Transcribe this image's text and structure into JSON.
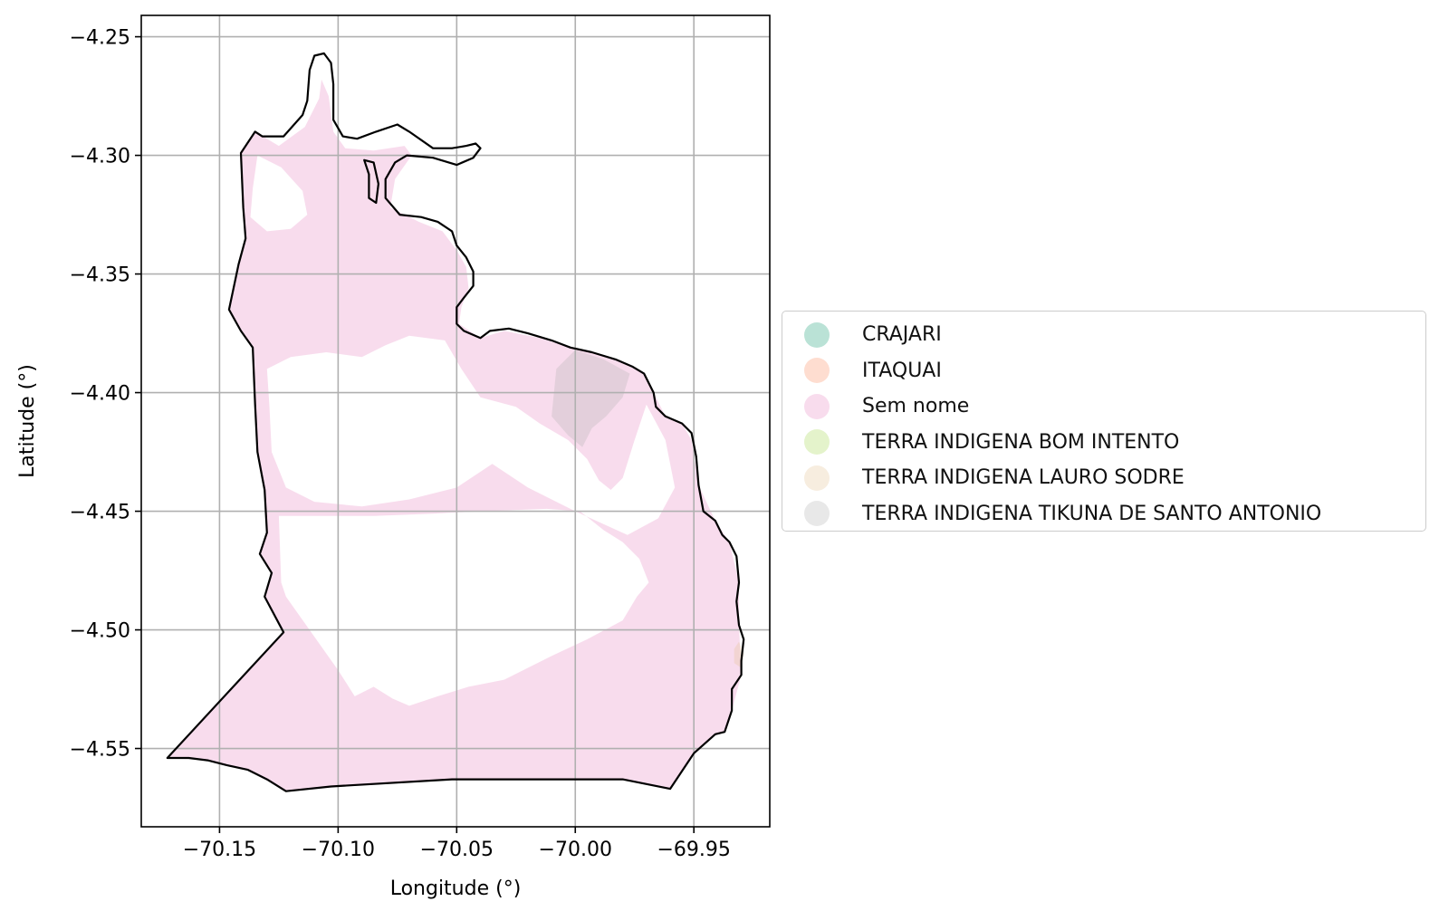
{
  "chart_data": {
    "type": "map",
    "title": "",
    "xlabel": "Longitude (°)",
    "ylabel": "Latitude (°)",
    "xlim": [
      -70.183,
      -69.918
    ],
    "ylim": [
      -4.583,
      -4.241
    ],
    "xticks": [
      -70.15,
      -70.1,
      -70.05,
      -70.0,
      -69.95
    ],
    "xtick_labels": [
      "−70.15",
      "−70.10",
      "−70.05",
      "−70.00",
      "−69.95"
    ],
    "yticks": [
      -4.25,
      -4.3,
      -4.35,
      -4.4,
      -4.45,
      -4.5,
      -4.55
    ],
    "ytick_labels": [
      "−4.25",
      "−4.30",
      "−4.35",
      "−4.40",
      "−4.45",
      "−4.50",
      "−4.55"
    ],
    "grid": true,
    "legend_position": "right-center",
    "legend": [
      {
        "label": "CRAJARI",
        "color": "#1b9e77"
      },
      {
        "label": "ITAQUAI",
        "color": "#fc8d62"
      },
      {
        "label": "Sem nome",
        "color": "#e78ac3"
      },
      {
        "label": "TERRA INDIGENA BOM INTENTO",
        "color": "#a6d854"
      },
      {
        "label": "TERRA INDIGENA LAURO SODRE",
        "color": "#e5c494"
      },
      {
        "label": "TERRA INDIGENA TIKUNA DE SANTO ANTONIO",
        "color": "#b3b3b3"
      }
    ],
    "fill_alpha": 0.3,
    "boundary": [
      [
        -70.123,
        -4.501
      ],
      [
        -70.131,
        -4.486
      ],
      [
        -70.128,
        -4.476
      ],
      [
        -70.133,
        -4.468
      ],
      [
        -70.13,
        -4.459
      ],
      [
        -70.131,
        -4.441
      ],
      [
        -70.134,
        -4.425
      ],
      [
        -70.135,
        -4.405
      ],
      [
        -70.136,
        -4.381
      ],
      [
        -70.141,
        -4.374
      ],
      [
        -70.146,
        -4.365
      ],
      [
        -70.142,
        -4.346
      ],
      [
        -70.139,
        -4.335
      ],
      [
        -70.14,
        -4.322
      ],
      [
        -70.141,
        -4.299
      ],
      [
        -70.135,
        -4.29
      ],
      [
        -70.132,
        -4.292
      ],
      [
        -70.123,
        -4.292
      ],
      [
        -70.115,
        -4.283
      ],
      [
        -70.113,
        -4.277
      ],
      [
        -70.112,
        -4.264
      ],
      [
        -70.11,
        -4.258
      ],
      [
        -70.106,
        -4.257
      ],
      [
        -70.103,
        -4.261
      ],
      [
        -70.102,
        -4.27
      ],
      [
        -70.102,
        -4.285
      ],
      [
        -70.098,
        -4.292
      ],
      [
        -70.092,
        -4.293
      ],
      [
        -70.084,
        -4.29
      ],
      [
        -70.075,
        -4.287
      ],
      [
        -70.07,
        -4.29
      ],
      [
        -70.06,
        -4.297
      ],
      [
        -70.052,
        -4.297
      ],
      [
        -70.046,
        -4.296
      ],
      [
        -70.042,
        -4.295
      ],
      [
        -70.04,
        -4.297
      ],
      [
        -70.043,
        -4.301
      ],
      [
        -70.05,
        -4.304
      ],
      [
        -70.06,
        -4.301
      ],
      [
        -70.071,
        -4.3
      ],
      [
        -70.076,
        -4.303
      ],
      [
        -70.08,
        -4.31
      ],
      [
        -70.08,
        -4.318
      ],
      [
        -70.074,
        -4.325
      ],
      [
        -70.065,
        -4.326
      ],
      [
        -70.058,
        -4.328
      ],
      [
        -70.052,
        -4.332
      ],
      [
        -70.05,
        -4.338
      ],
      [
        -70.046,
        -4.343
      ],
      [
        -70.043,
        -4.349
      ],
      [
        -70.043,
        -4.355
      ],
      [
        -70.047,
        -4.36
      ],
      [
        -70.05,
        -4.364
      ],
      [
        -70.05,
        -4.371
      ],
      [
        -70.047,
        -4.374
      ],
      [
        -70.04,
        -4.377
      ],
      [
        -70.036,
        -4.374
      ],
      [
        -70.028,
        -4.373
      ],
      [
        -70.02,
        -4.375
      ],
      [
        -70.01,
        -4.378
      ],
      [
        -70.002,
        -4.381
      ],
      [
        -69.993,
        -4.383
      ],
      [
        -69.983,
        -4.386
      ],
      [
        -69.976,
        -4.389
      ],
      [
        -69.971,
        -4.392
      ],
      [
        -69.967,
        -4.4
      ],
      [
        -69.966,
        -4.406
      ],
      [
        -69.962,
        -4.41
      ],
      [
        -69.955,
        -4.413
      ],
      [
        -69.951,
        -4.417
      ],
      [
        -69.949,
        -4.427
      ],
      [
        -69.948,
        -4.439
      ],
      [
        -69.946,
        -4.45
      ],
      [
        -69.941,
        -4.454
      ],
      [
        -69.938,
        -4.46
      ],
      [
        -69.935,
        -4.463
      ],
      [
        -69.932,
        -4.469
      ],
      [
        -69.931,
        -4.48
      ],
      [
        -69.932,
        -4.488
      ],
      [
        -69.931,
        -4.498
      ],
      [
        -69.929,
        -4.504
      ],
      [
        -69.93,
        -4.513
      ],
      [
        -69.93,
        -4.519
      ],
      [
        -69.934,
        -4.525
      ],
      [
        -69.934,
        -4.534
      ],
      [
        -69.937,
        -4.543
      ],
      [
        -69.941,
        -4.544
      ],
      [
        -69.95,
        -4.552
      ],
      [
        -69.96,
        -4.567
      ],
      [
        -69.98,
        -4.563
      ],
      [
        -70.052,
        -4.563
      ],
      [
        -70.103,
        -4.566
      ],
      [
        -70.122,
        -4.568
      ],
      [
        -70.13,
        -4.563
      ],
      [
        -70.138,
        -4.559
      ],
      [
        -70.147,
        -4.557
      ],
      [
        -70.155,
        -4.555
      ],
      [
        -70.163,
        -4.554
      ],
      [
        -70.172,
        -4.554
      ]
    ],
    "inner_boundary": [
      [
        -70.089,
        -4.302
      ],
      [
        -70.087,
        -4.308
      ],
      [
        -70.087,
        -4.318
      ],
      [
        -70.084,
        -4.32
      ],
      [
        -70.083,
        -4.312
      ],
      [
        -70.085,
        -4.303
      ]
    ],
    "regions": [
      {
        "label": "Sem nome",
        "outer": [
          [
            -70.123,
            -4.501
          ],
          [
            -70.131,
            -4.486
          ],
          [
            -70.128,
            -4.476
          ],
          [
            -70.133,
            -4.468
          ],
          [
            -70.13,
            -4.459
          ],
          [
            -70.131,
            -4.441
          ],
          [
            -70.134,
            -4.425
          ],
          [
            -70.135,
            -4.405
          ],
          [
            -70.136,
            -4.381
          ],
          [
            -70.141,
            -4.374
          ],
          [
            -70.146,
            -4.365
          ],
          [
            -70.142,
            -4.346
          ],
          [
            -70.139,
            -4.335
          ],
          [
            -70.14,
            -4.322
          ],
          [
            -70.141,
            -4.299
          ],
          [
            -70.135,
            -4.29
          ],
          [
            -70.125,
            -4.296
          ],
          [
            -70.114,
            -4.288
          ],
          [
            -70.108,
            -4.276
          ],
          [
            -70.107,
            -4.268
          ],
          [
            -70.104,
            -4.275
          ],
          [
            -70.102,
            -4.29
          ],
          [
            -70.097,
            -4.297
          ],
          [
            -70.085,
            -4.298
          ],
          [
            -70.072,
            -4.296
          ],
          [
            -70.069,
            -4.3
          ],
          [
            -70.076,
            -4.31
          ],
          [
            -70.078,
            -4.322
          ],
          [
            -70.066,
            -4.328
          ],
          [
            -70.056,
            -4.332
          ],
          [
            -70.05,
            -4.34
          ],
          [
            -70.046,
            -4.347
          ],
          [
            -70.045,
            -4.356
          ],
          [
            -70.048,
            -4.364
          ],
          [
            -70.049,
            -4.371
          ],
          [
            -70.04,
            -4.377
          ],
          [
            -70.03,
            -4.374
          ],
          [
            -70.015,
            -4.377
          ],
          [
            -70.002,
            -4.381
          ],
          [
            -69.993,
            -4.383
          ],
          [
            -69.983,
            -4.386
          ],
          [
            -69.971,
            -4.392
          ],
          [
            -69.967,
            -4.4
          ],
          [
            -69.962,
            -4.41
          ],
          [
            -69.955,
            -4.413
          ],
          [
            -69.951,
            -4.42
          ],
          [
            -69.948,
            -4.439
          ],
          [
            -69.941,
            -4.454
          ],
          [
            -69.935,
            -4.463
          ],
          [
            -69.931,
            -4.48
          ],
          [
            -69.931,
            -4.498
          ],
          [
            -69.93,
            -4.519
          ],
          [
            -69.934,
            -4.534
          ],
          [
            -69.937,
            -4.543
          ],
          [
            -69.941,
            -4.544
          ],
          [
            -69.95,
            -4.552
          ],
          [
            -69.96,
            -4.567
          ],
          [
            -69.98,
            -4.563
          ],
          [
            -70.052,
            -4.563
          ],
          [
            -70.103,
            -4.566
          ],
          [
            -70.122,
            -4.568
          ],
          [
            -70.138,
            -4.559
          ],
          [
            -70.155,
            -4.555
          ],
          [
            -70.172,
            -4.554
          ]
        ],
        "holes": [
          [
            [
              -70.119,
              -4.452
            ],
            [
              -70.125,
              -4.452
            ],
            [
              -70.124,
              -4.48
            ],
            [
              -70.122,
              -4.486
            ],
            [
              -70.1,
              -4.517
            ],
            [
              -70.093,
              -4.528
            ],
            [
              -70.085,
              -4.524
            ],
            [
              -70.077,
              -4.529
            ],
            [
              -70.07,
              -4.532
            ],
            [
              -70.058,
              -4.528
            ],
            [
              -70.045,
              -4.524
            ],
            [
              -70.03,
              -4.521
            ],
            [
              -70.01,
              -4.511
            ],
            [
              -69.995,
              -4.504
            ],
            [
              -69.98,
              -4.496
            ],
            [
              -69.974,
              -4.486
            ],
            [
              -69.969,
              -4.48
            ],
            [
              -69.973,
              -4.47
            ],
            [
              -69.98,
              -4.463
            ],
            [
              -69.988,
              -4.458
            ],
            [
              -69.998,
              -4.45
            ],
            [
              -70.012,
              -4.449
            ],
            [
              -70.04,
              -4.45
            ],
            [
              -70.06,
              -4.451
            ],
            [
              -70.085,
              -4.452
            ],
            [
              -70.1,
              -4.452
            ]
          ],
          [
            [
              -70.13,
              -4.39
            ],
            [
              -70.12,
              -4.385
            ],
            [
              -70.105,
              -4.383
            ],
            [
              -70.09,
              -4.385
            ],
            [
              -70.08,
              -4.38
            ],
            [
              -70.07,
              -4.376
            ],
            [
              -70.055,
              -4.378
            ],
            [
              -70.048,
              -4.39
            ],
            [
              -70.04,
              -4.402
            ],
            [
              -70.025,
              -4.406
            ],
            [
              -70.015,
              -4.413
            ],
            [
              -70.003,
              -4.42
            ],
            [
              -69.995,
              -4.428
            ],
            [
              -69.99,
              -4.437
            ],
            [
              -69.985,
              -4.441
            ],
            [
              -69.98,
              -4.436
            ],
            [
              -69.975,
              -4.42
            ],
            [
              -69.97,
              -4.405
            ],
            [
              -69.962,
              -4.42
            ],
            [
              -69.958,
              -4.44
            ],
            [
              -69.965,
              -4.453
            ],
            [
              -69.978,
              -4.46
            ],
            [
              -70.0,
              -4.45
            ],
            [
              -70.02,
              -4.44
            ],
            [
              -70.035,
              -4.43
            ],
            [
              -70.05,
              -4.44
            ],
            [
              -70.07,
              -4.445
            ],
            [
              -70.09,
              -4.448
            ],
            [
              -70.11,
              -4.446
            ],
            [
              -70.122,
              -4.44
            ],
            [
              -70.128,
              -4.425
            ],
            [
              -70.129,
              -4.405
            ]
          ],
          [
            [
              -70.134,
              -4.3
            ],
            [
              -70.124,
              -4.305
            ],
            [
              -70.115,
              -4.315
            ],
            [
              -70.113,
              -4.325
            ],
            [
              -70.12,
              -4.331
            ],
            [
              -70.13,
              -4.332
            ],
            [
              -70.137,
              -4.326
            ],
            [
              -70.136,
              -4.314
            ]
          ]
        ]
      },
      {
        "label": "TERRA INDIGENA TIKUNA DE SANTO ANTONIO",
        "outer": [
          [
            -70.008,
            -4.39
          ],
          [
            -70.0,
            -4.382
          ],
          [
            -69.988,
            -4.386
          ],
          [
            -69.977,
            -4.392
          ],
          [
            -69.98,
            -4.402
          ],
          [
            -69.987,
            -4.41
          ],
          [
            -69.993,
            -4.415
          ],
          [
            -69.997,
            -4.423
          ],
          [
            -70.003,
            -4.418
          ],
          [
            -70.01,
            -4.41
          ],
          [
            -70.009,
            -4.4
          ]
        ],
        "holes": []
      },
      {
        "label": "TERRA INDIGENA LAURO SODRE",
        "outer": [
          [
            -69.931,
            -4.505
          ],
          [
            -69.929,
            -4.51
          ],
          [
            -69.93,
            -4.516
          ],
          [
            -69.933,
            -4.514
          ],
          [
            -69.933,
            -4.508
          ]
        ],
        "holes": []
      }
    ]
  }
}
